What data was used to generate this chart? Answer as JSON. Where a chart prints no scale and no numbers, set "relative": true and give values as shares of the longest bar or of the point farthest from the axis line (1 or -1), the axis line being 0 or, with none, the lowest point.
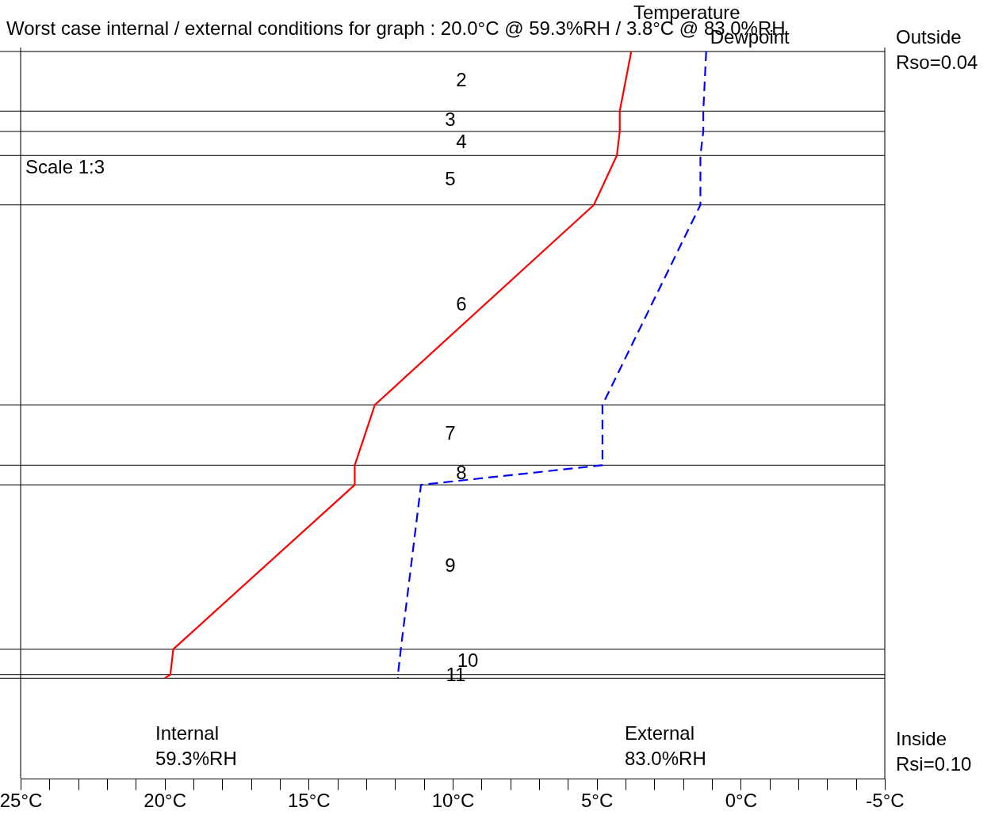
{
  "chart_data": {
    "type": "line",
    "title": "Worst case internal / external conditions for graph : 20.0°C @ 59.3%RH / 3.8°C @ 83.0%RH",
    "relative": true,
    "xlim": [
      25,
      -5
    ],
    "xticks": [
      {
        "value": 25,
        "label": "25°C"
      },
      {
        "value": 24,
        "label": null
      },
      {
        "value": 23,
        "label": null
      },
      {
        "value": 22,
        "label": null
      },
      {
        "value": 21,
        "label": null
      },
      {
        "value": 20,
        "label": "20°C"
      },
      {
        "value": 19,
        "label": null
      },
      {
        "value": 18,
        "label": null
      },
      {
        "value": 17,
        "label": null
      },
      {
        "value": 16,
        "label": null
      },
      {
        "value": 15,
        "label": "15°C"
      },
      {
        "value": 14,
        "label": null
      },
      {
        "value": 13,
        "label": null
      },
      {
        "value": 12,
        "label": null
      },
      {
        "value": 11,
        "label": null
      },
      {
        "value": 10,
        "label": "10°C"
      },
      {
        "value": 9,
        "label": null
      },
      {
        "value": 8,
        "label": null
      },
      {
        "value": 7,
        "label": null
      },
      {
        "value": 6,
        "label": null
      },
      {
        "value": 5,
        "label": "5°C"
      },
      {
        "value": 4,
        "label": null
      },
      {
        "value": 3,
        "label": null
      },
      {
        "value": 2,
        "label": null
      },
      {
        "value": 1,
        "label": null
      },
      {
        "value": 0,
        "label": "0°C"
      },
      {
        "value": -1,
        "label": null
      },
      {
        "value": -2,
        "label": null
      },
      {
        "value": -3,
        "label": null
      },
      {
        "value": -4,
        "label": null
      },
      {
        "value": -5,
        "label": "-5°C"
      }
    ],
    "grid": false,
    "marker": "none",
    "series": [
      {
        "name": "Temperature",
        "color": "#ff0000",
        "line_style": "solid",
        "x": [
          3.8,
          4.2,
          4.2,
          4.3,
          5.1,
          12.7,
          13.4,
          13.4,
          19.7,
          19.8,
          20.0
        ],
        "values": [
          1,
          0.918,
          0.89,
          0.857,
          0.789,
          0.514,
          0.431,
          0.404,
          0.178,
          0.143,
          0.138
        ]
      },
      {
        "name": "Dewpoint",
        "color": "#0000ff",
        "line_style": "dashed",
        "x": [
          1.2,
          1.3,
          1.3,
          1.4,
          1.4,
          4.8,
          4.8,
          11.1,
          11.8,
          11.9,
          11.9
        ],
        "values": [
          1,
          0.918,
          0.89,
          0.857,
          0.789,
          0.514,
          0.431,
          0.404,
          0.178,
          0.143,
          0.138
        ]
      }
    ],
    "ref_lines": [
      {
        "axis": "y",
        "value": 1,
        "color": "#000000"
      },
      {
        "axis": "y",
        "value": 0.918,
        "color": "#000000"
      },
      {
        "axis": "y",
        "value": 0.89,
        "color": "#000000"
      },
      {
        "axis": "y",
        "value": 0.857,
        "color": "#000000"
      },
      {
        "axis": "y",
        "value": 0.789,
        "color": "#000000"
      },
      {
        "axis": "y",
        "value": 0.514,
        "color": "#000000"
      },
      {
        "axis": "y",
        "value": 0.431,
        "color": "#000000"
      },
      {
        "axis": "y",
        "value": 0.404,
        "color": "#000000"
      },
      {
        "axis": "y",
        "value": 0.178,
        "color": "#000000"
      },
      {
        "axis": "y",
        "value": 0.143,
        "color": "#000000"
      },
      {
        "axis": "y",
        "value": 0.138,
        "color": "#000000"
      }
    ],
    "annotations": [
      "2",
      "3",
      "4",
      "5",
      "6",
      "7",
      "8",
      "9",
      "10",
      "11",
      "Scale 1:3",
      "Outside\nRso=0.04",
      "Inside\nRsi=0.10",
      "Internal\n59.3%RH",
      "External\n83.0%RH"
    ]
  }
}
